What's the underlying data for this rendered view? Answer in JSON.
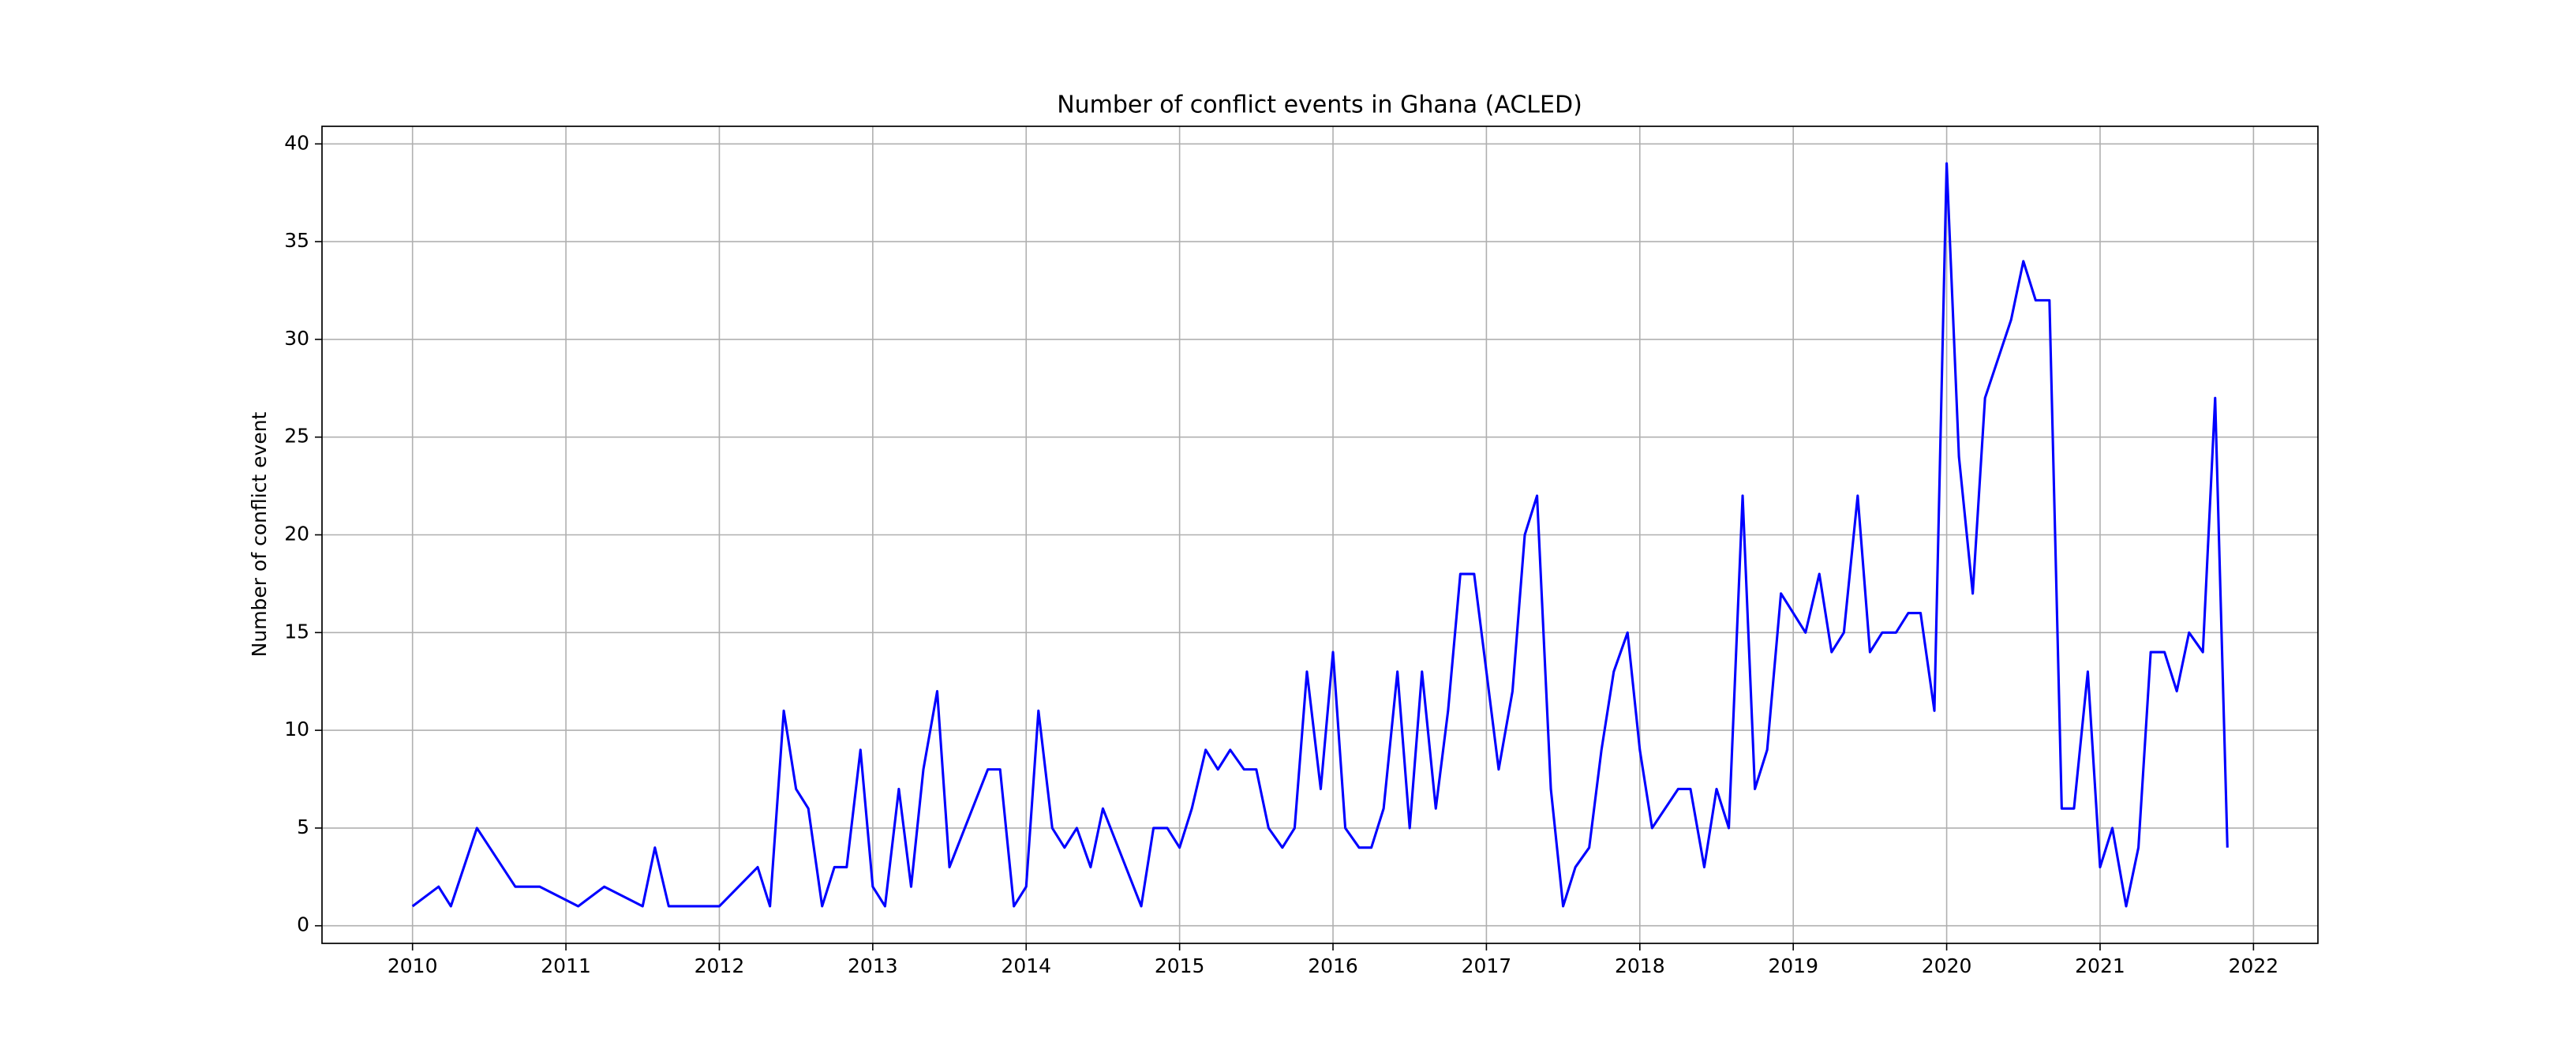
{
  "chart_data": {
    "type": "line",
    "title": "Number of conflict events in Ghana (ACLED)",
    "ylabel": "Number of conflict event",
    "x": [
      2010.0,
      2010.17,
      2010.25,
      2010.42,
      2010.67,
      2010.83,
      2011.08,
      2011.25,
      2011.5,
      2011.58,
      2011.67,
      2012.0,
      2012.25,
      2012.33,
      2012.42,
      2012.5,
      2012.58,
      2012.67,
      2012.75,
      2012.83,
      2012.92,
      2013.0,
      2013.08,
      2013.17,
      2013.25,
      2013.33,
      2013.42,
      2013.5,
      2013.75,
      2013.83,
      2013.92,
      2014.0,
      2014.08,
      2014.17,
      2014.25,
      2014.33,
      2014.42,
      2014.5,
      2014.75,
      2014.83,
      2014.92,
      2015.0,
      2015.08,
      2015.17,
      2015.25,
      2015.33,
      2015.42,
      2015.5,
      2015.58,
      2015.67,
      2015.75,
      2015.83,
      2015.92,
      2016.0,
      2016.08,
      2016.17,
      2016.25,
      2016.33,
      2016.42,
      2016.5,
      2016.58,
      2016.67,
      2016.75,
      2016.83,
      2016.92,
      2017.08,
      2017.17,
      2017.25,
      2017.33,
      2017.42,
      2017.5,
      2017.58,
      2017.67,
      2017.75,
      2017.83,
      2017.92,
      2018.0,
      2018.08,
      2018.25,
      2018.33,
      2018.42,
      2018.5,
      2018.58,
      2018.67,
      2018.75,
      2018.83,
      2018.92,
      2019.08,
      2019.17,
      2019.25,
      2019.33,
      2019.42,
      2019.5,
      2019.58,
      2019.67,
      2019.75,
      2019.83,
      2019.92,
      2020.0,
      2020.08,
      2020.17,
      2020.25,
      2020.42,
      2020.5,
      2020.58,
      2020.67,
      2020.75,
      2020.83,
      2020.92,
      2021.0,
      2021.08,
      2021.17,
      2021.25,
      2021.33,
      2021.42,
      2021.5,
      2021.58,
      2021.67,
      2021.75,
      2021.83
    ],
    "series": [
      {
        "name": "Number of conflict events",
        "color": "#0000ff",
        "values": [
          1,
          2,
          1,
          5,
          2,
          2,
          1,
          2,
          1,
          4,
          1,
          1,
          3,
          1,
          11,
          7,
          6,
          1,
          3,
          3,
          9,
          2,
          1,
          7,
          2,
          8,
          12,
          3,
          8,
          8,
          1,
          2,
          11,
          5,
          4,
          5,
          3,
          6,
          1,
          5,
          5,
          4,
          6,
          9,
          8,
          9,
          8,
          8,
          5,
          4,
          5,
          13,
          7,
          14,
          5,
          4,
          4,
          6,
          13,
          5,
          13,
          6,
          11,
          18,
          18,
          8,
          12,
          20,
          22,
          7,
          1,
          3,
          4,
          9,
          13,
          15,
          9,
          5,
          7,
          7,
          3,
          7,
          5,
          22,
          7,
          9,
          17,
          15,
          18,
          14,
          15,
          22,
          14,
          15,
          15,
          16,
          16,
          11,
          39,
          24,
          17,
          27,
          31,
          34,
          32,
          32,
          6,
          6,
          13,
          3,
          5,
          1,
          4,
          14,
          14,
          12,
          15,
          14,
          27,
          4
        ]
      }
    ],
    "xlim": [
      2009.41,
      2022.42
    ],
    "xticks": [
      2010,
      2011,
      2012,
      2013,
      2014,
      2015,
      2016,
      2017,
      2018,
      2019,
      2020,
      2021,
      2022
    ],
    "ylim": [
      -0.9,
      40.9
    ],
    "yticks": [
      0,
      5,
      10,
      15,
      20,
      25,
      30,
      35,
      40
    ],
    "grid": true
  }
}
